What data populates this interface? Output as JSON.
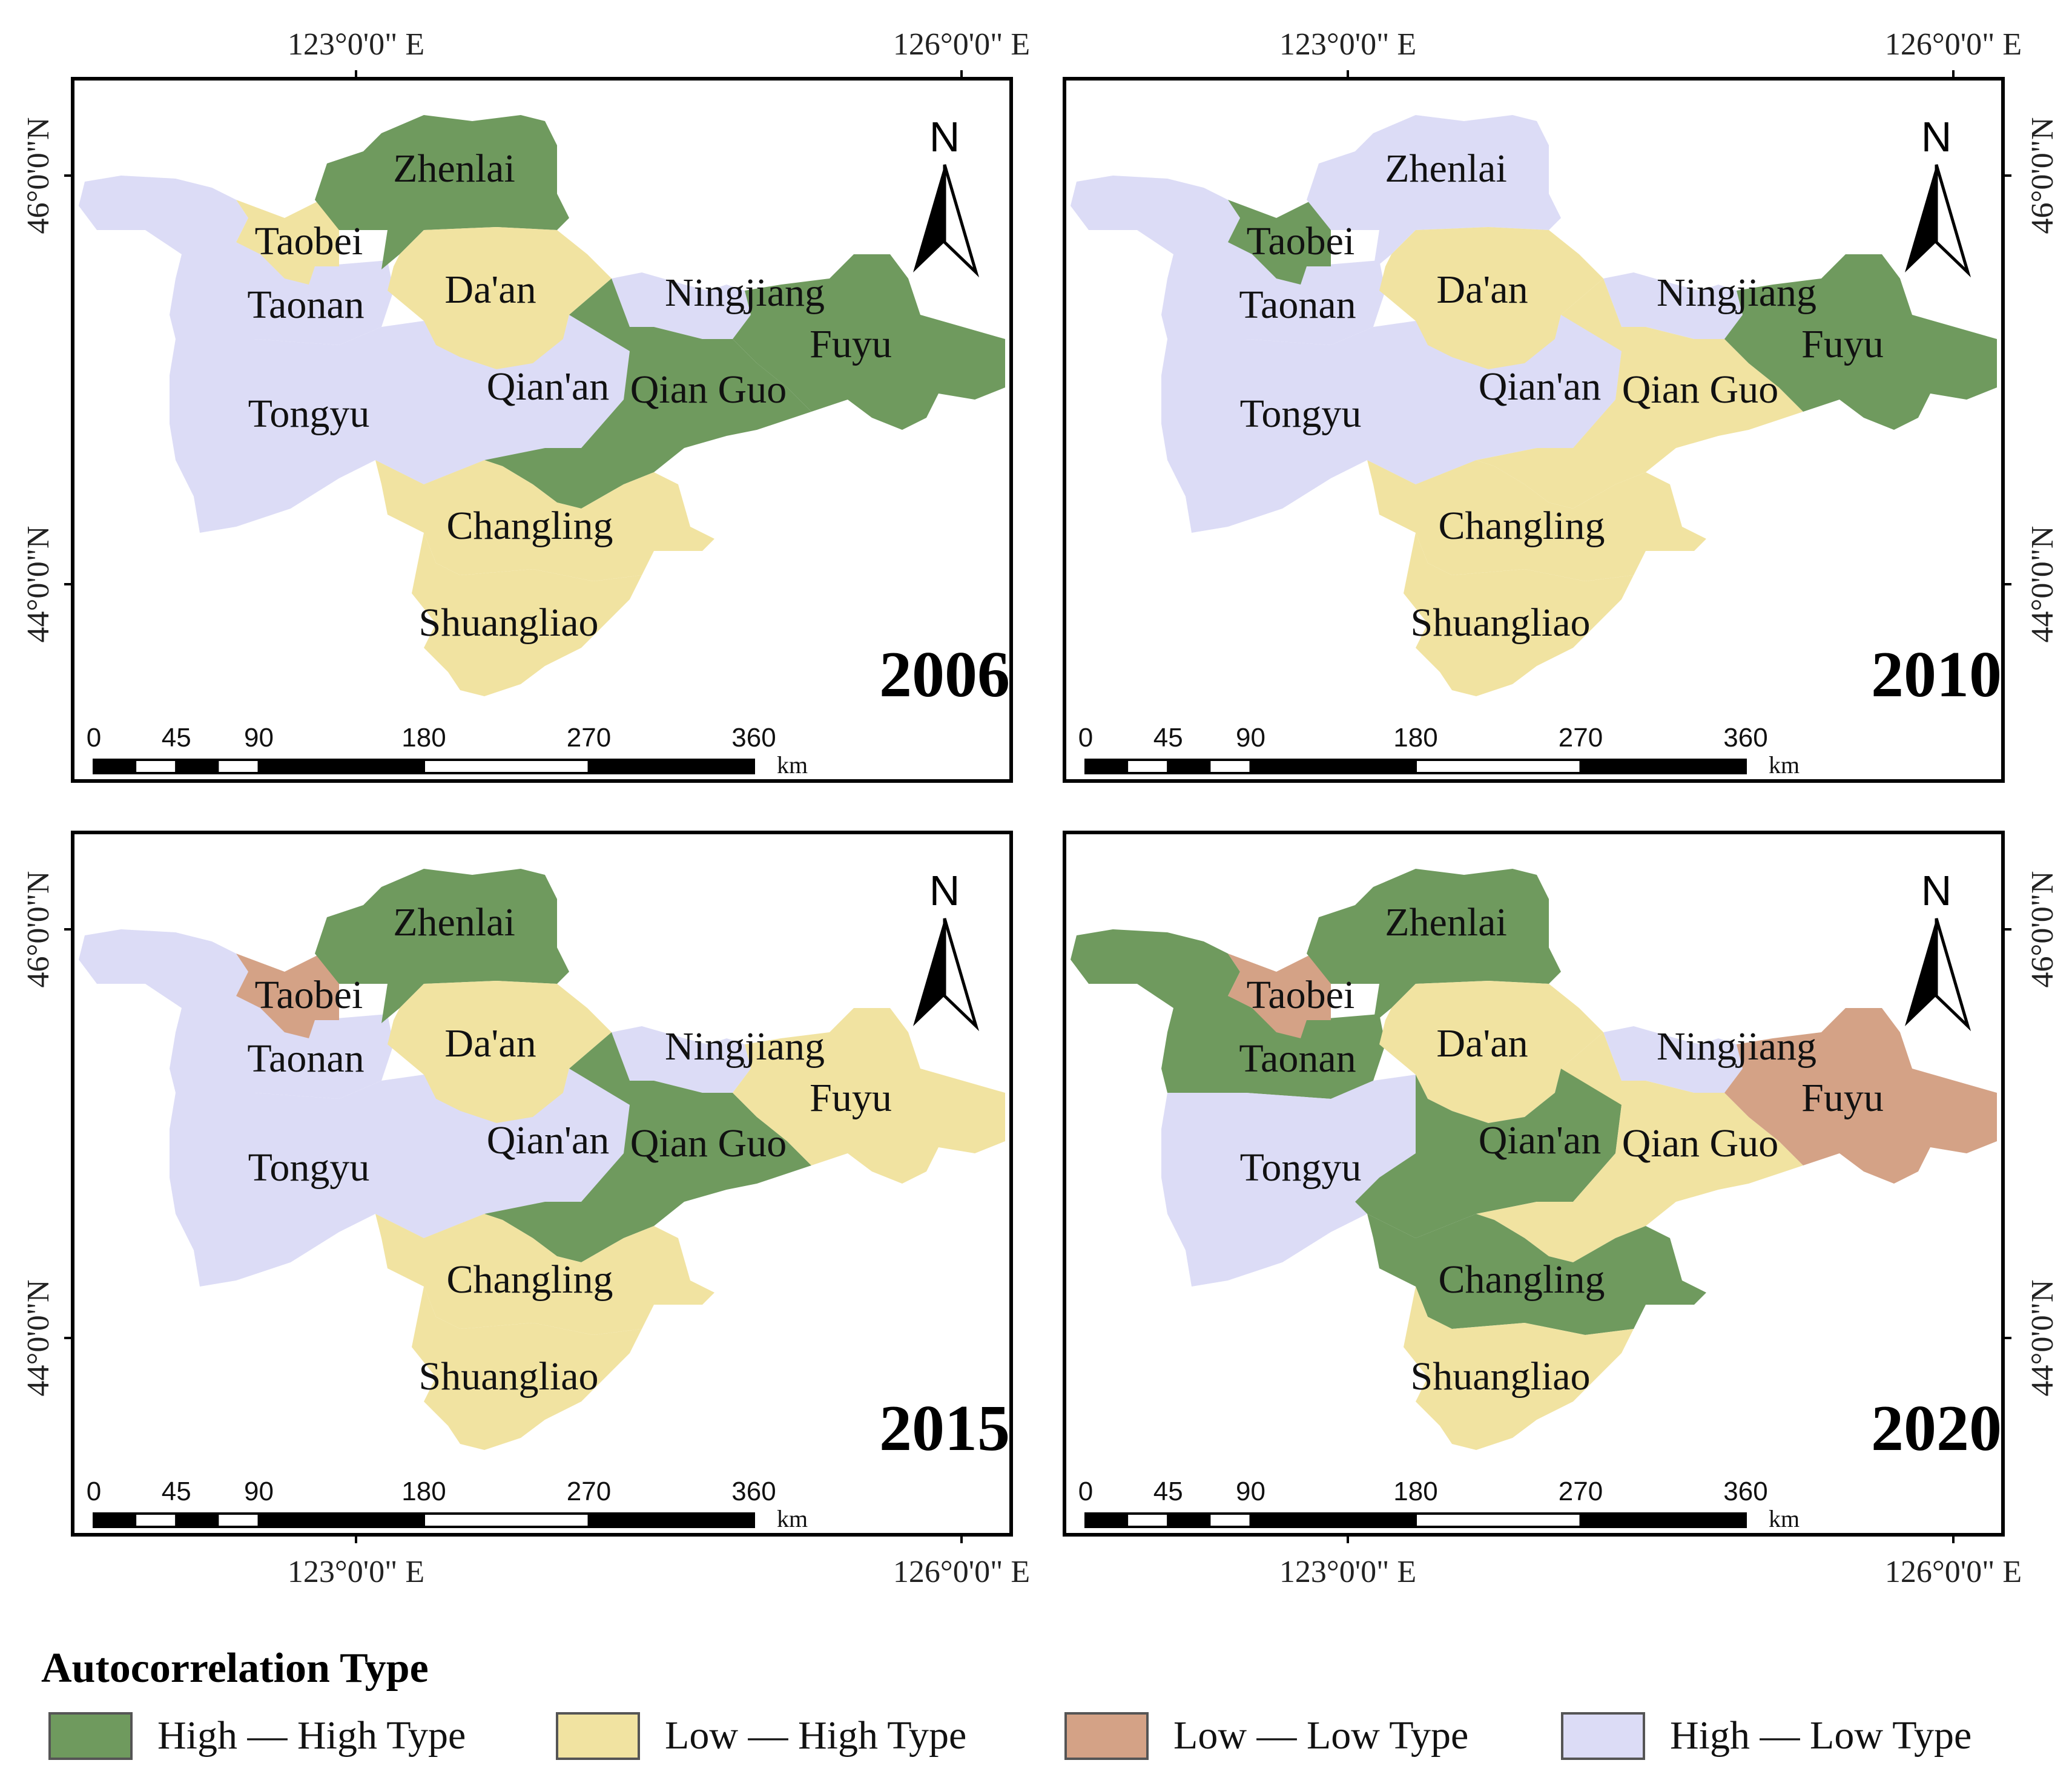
{
  "colors": {
    "high_high": "#6f9a5e",
    "low_high": "#f1e3a1",
    "low_low": "#d4a286",
    "high_low": "#dcdcf6",
    "frame": "#000000"
  },
  "axis_labels": {
    "lon_123": "123°0'0\" E",
    "lon_126": "126°0'0\" E",
    "lat_46": "46°0'0\"N",
    "lat_44": "44°0'0\"N"
  },
  "north_arrow": {
    "letter": "N",
    "icon": "north-arrow-icon"
  },
  "scale_bar": {
    "ticks": [
      "0",
      "45",
      "90",
      "180",
      "270",
      "360"
    ],
    "unit": "km"
  },
  "county_names": {
    "zhenlai": "Zhenlai",
    "taobei": "Taobei",
    "taonan": "Taonan",
    "daan": "Da'an",
    "ningjiang": "Ningjiang",
    "fuyu": "Fuyu",
    "qianan": "Qian'an",
    "qianguo": "Qian Guo",
    "tongyu": "Tongyu",
    "changling": "Changling",
    "shuangliao": "Shuangliao"
  },
  "panels": [
    {
      "year": "2006",
      "types": {
        "zhenlai": "high_high",
        "taobei": "low_high",
        "taonan": "high_low",
        "tongyu": "high_low",
        "daan": "low_high",
        "qianan": "high_low",
        "ningjiang": "high_low",
        "qianguo": "high_high",
        "fuyu": "high_high",
        "changling": "low_high",
        "shuangliao": "low_high"
      }
    },
    {
      "year": "2010",
      "types": {
        "zhenlai": "high_low",
        "taobei": "high_high",
        "taonan": "high_low",
        "tongyu": "high_low",
        "daan": "low_high",
        "qianan": "high_low",
        "ningjiang": "high_low",
        "qianguo": "low_high",
        "fuyu": "high_high",
        "changling": "low_high",
        "shuangliao": "low_high"
      }
    },
    {
      "year": "2015",
      "types": {
        "zhenlai": "high_high",
        "taobei": "low_low",
        "taonan": "high_low",
        "tongyu": "high_low",
        "daan": "low_high",
        "qianan": "high_low",
        "ningjiang": "high_low",
        "qianguo": "high_high",
        "fuyu": "low_high",
        "changling": "low_high",
        "shuangliao": "low_high"
      }
    },
    {
      "year": "2020",
      "types": {
        "zhenlai": "high_high",
        "taobei": "low_low",
        "taonan": "high_high",
        "tongyu": "high_low",
        "daan": "low_high",
        "qianan": "high_high",
        "ningjiang": "high_low",
        "qianguo": "low_high",
        "fuyu": "low_low",
        "changling": "high_high",
        "shuangliao": "low_high"
      }
    }
  ],
  "legend": {
    "title": "Autocorrelation Type",
    "items": [
      {
        "key": "high_high",
        "label": "High — High Type"
      },
      {
        "key": "low_high",
        "label": "Low — High Type"
      },
      {
        "key": "low_low",
        "label": "Low — Low Type"
      },
      {
        "key": "high_low",
        "label": "High — Low Type"
      }
    ]
  }
}
